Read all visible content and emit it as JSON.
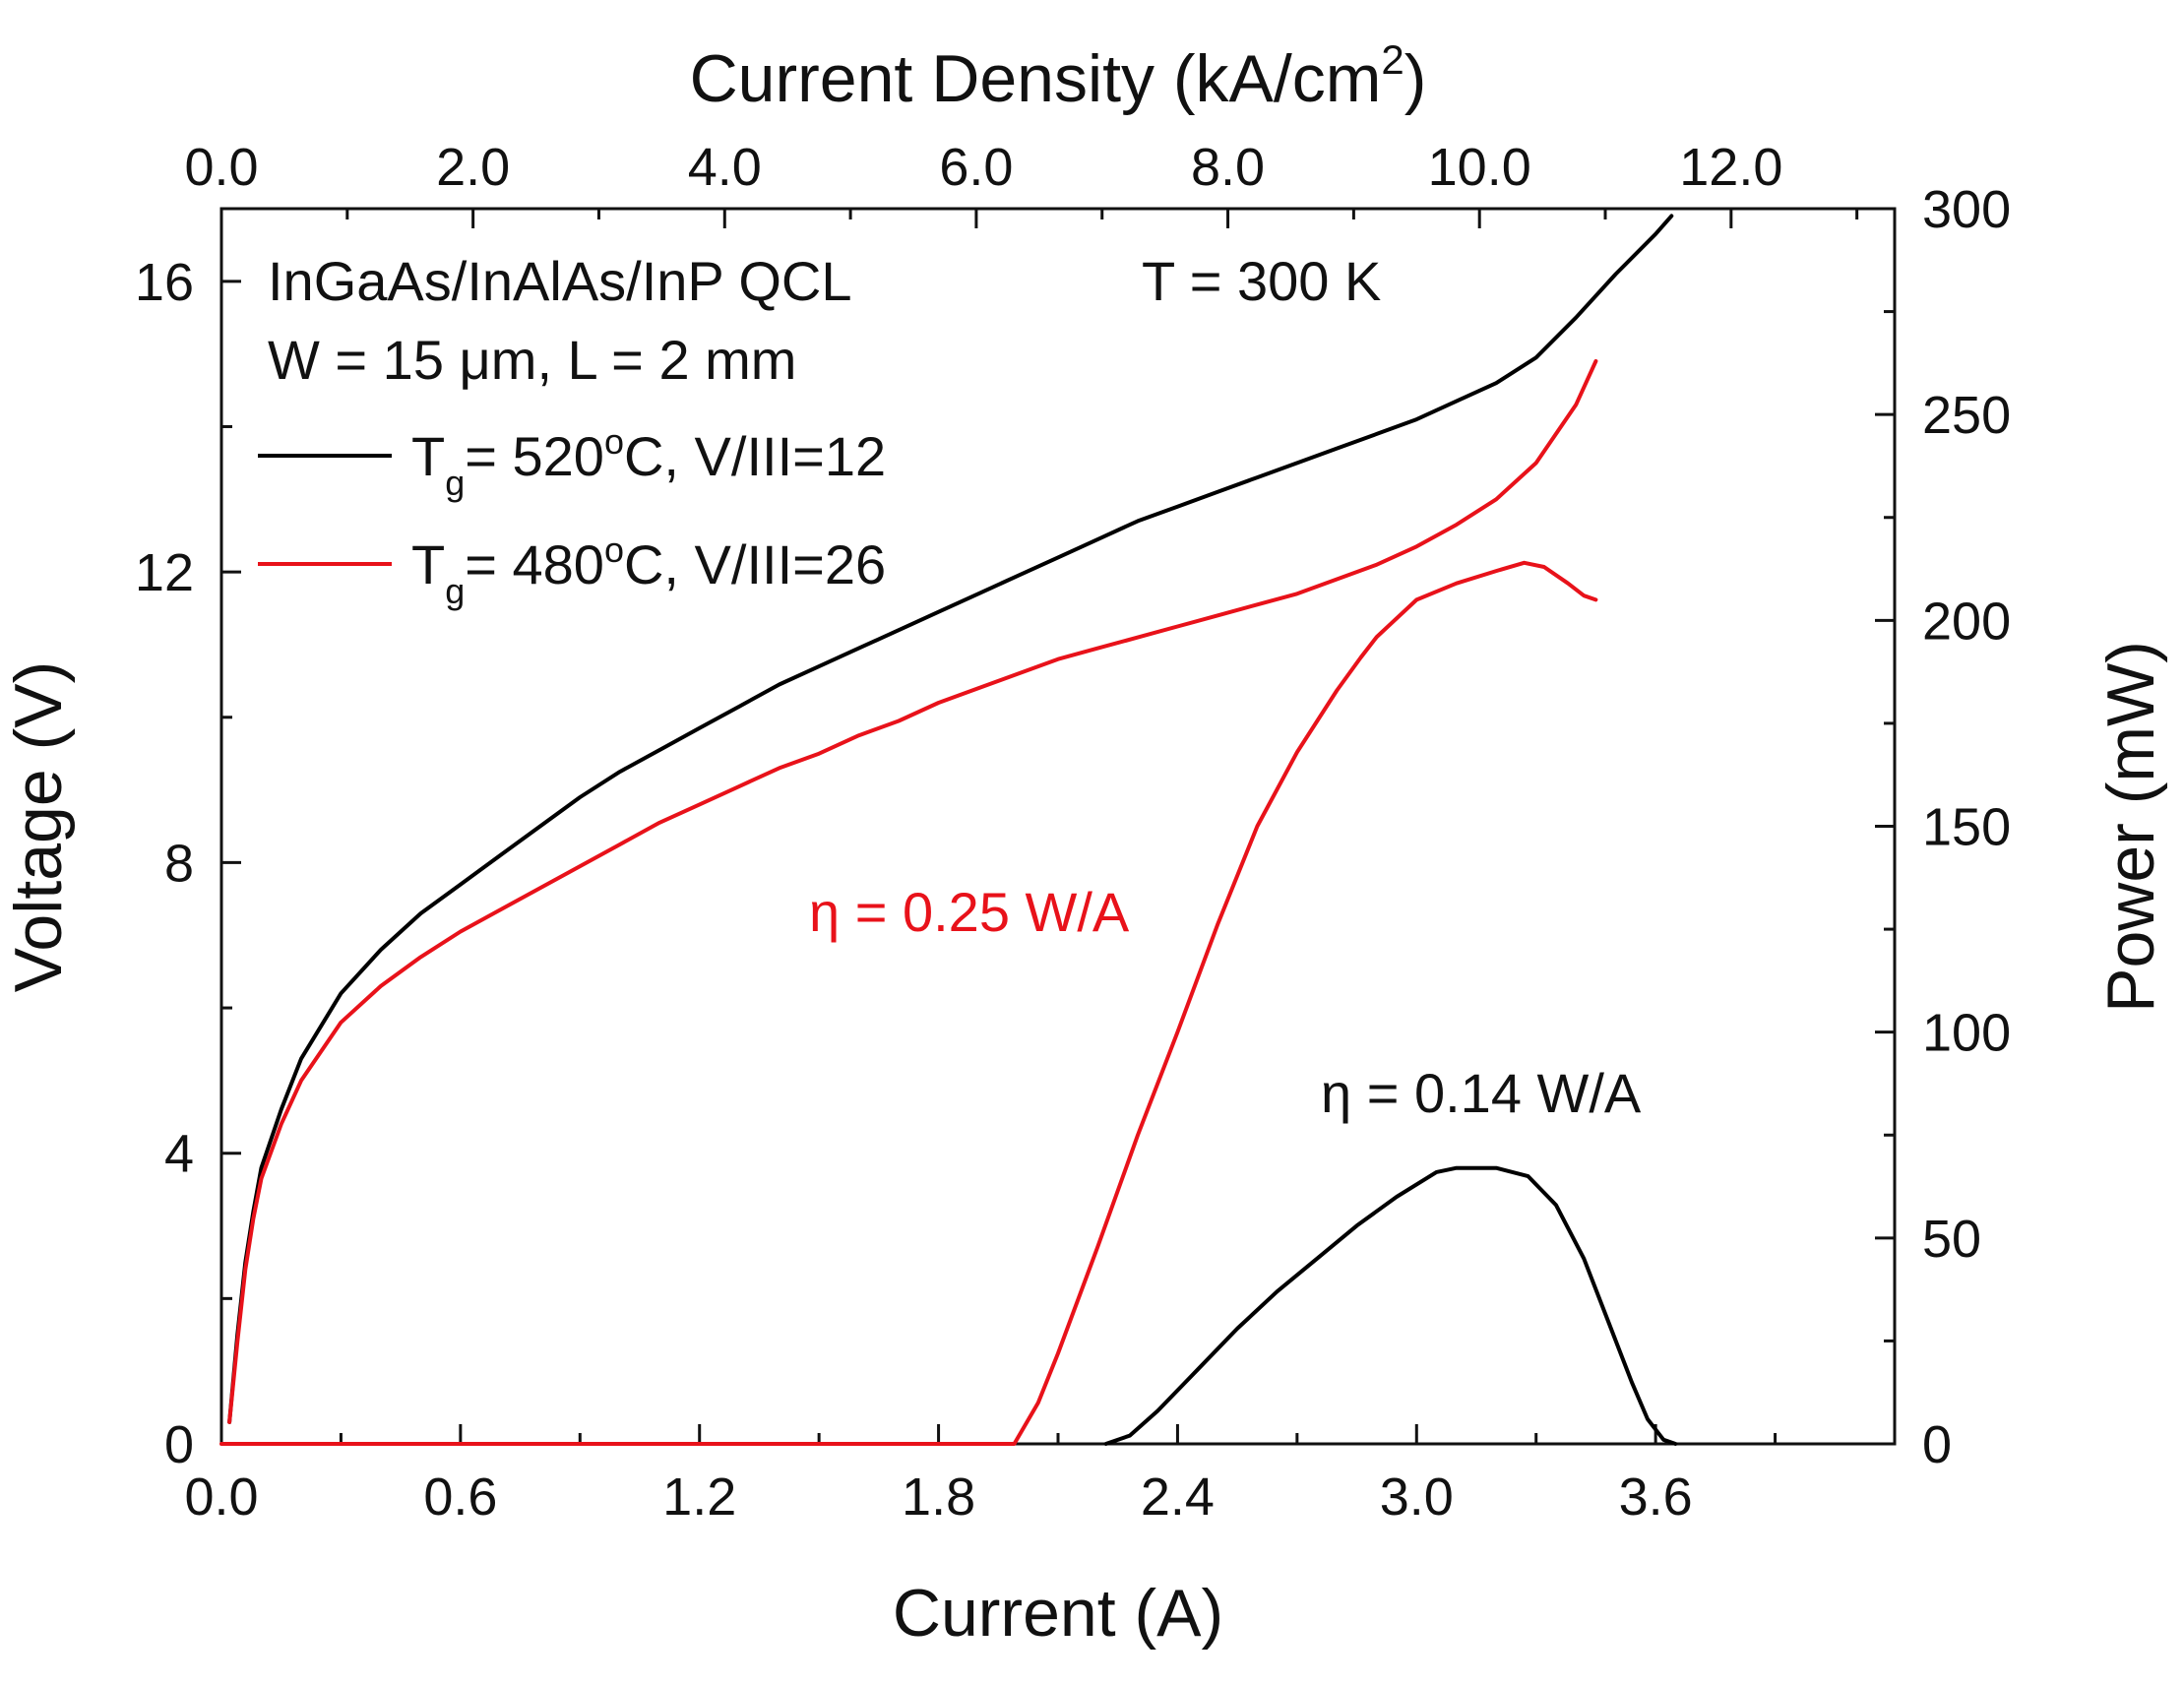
{
  "chart_data": {
    "type": "line",
    "annotation": {
      "device_line": "InGaAs/InAlAs/InP QCL",
      "temperature": "T = 300 K",
      "geometry": "W = 15 μm,  L = 2 mm",
      "eta_red": "η = 0.25 W/A",
      "eta_black": "η = 0.14 W/A"
    },
    "axes": {
      "x_bottom": {
        "label": "Current (A)",
        "range": [
          0,
          4.2
        ],
        "major_ticks": [
          0,
          0.6,
          1.2,
          1.8,
          2.4,
          3.0,
          3.6
        ],
        "tick_labels": [
          "0.0",
          "0.6",
          "1.2",
          "1.8",
          "2.4",
          "3.0",
          "3.6"
        ]
      },
      "x_top": {
        "label_main": "Current Density (kA/cm",
        "label_sup": "2",
        "label_end": ")",
        "range": [
          0,
          13.3
        ],
        "major_ticks": [
          0,
          2,
          4,
          6,
          8,
          10,
          12
        ],
        "tick_labels": [
          "0.0",
          "2.0",
          "4.0",
          "6.0",
          "8.0",
          "10.0",
          "12.0"
        ]
      },
      "y_left": {
        "label": "Voltage (V)",
        "range": [
          0,
          17
        ],
        "major_ticks": [
          0,
          4,
          8,
          12,
          16
        ],
        "tick_labels": [
          "0",
          "4",
          "8",
          "12",
          "16"
        ]
      },
      "y_right": {
        "label": "Power (mW)",
        "range": [
          0,
          300
        ],
        "major_ticks": [
          0,
          50,
          100,
          150,
          200,
          250,
          300
        ],
        "tick_labels": [
          "0",
          "50",
          "100",
          "150",
          "200",
          "250",
          "300"
        ]
      }
    },
    "legend": {
      "placement": "top-left",
      "entries": [
        {
          "prefix": "T",
          "sub": "g",
          "mid": "= 520",
          "sup": "o",
          "suffix": "C, V/III=12",
          "color": "#000000"
        },
        {
          "prefix": "T",
          "sub": "g",
          "mid": "= 480",
          "sup": "o",
          "suffix": "C, V/III=26",
          "color": "#e8121a"
        }
      ]
    },
    "series": [
      {
        "name": "Tg=520C voltage",
        "axis": "left",
        "color": "#000000",
        "points": [
          [
            0.02,
            0.3
          ],
          [
            0.04,
            1.5
          ],
          [
            0.06,
            2.5
          ],
          [
            0.08,
            3.2
          ],
          [
            0.1,
            3.8
          ],
          [
            0.15,
            4.6
          ],
          [
            0.2,
            5.3
          ],
          [
            0.3,
            6.2
          ],
          [
            0.4,
            6.8
          ],
          [
            0.5,
            7.3
          ],
          [
            0.6,
            7.7
          ],
          [
            0.7,
            8.1
          ],
          [
            0.8,
            8.5
          ],
          [
            0.9,
            8.9
          ],
          [
            1.0,
            9.25
          ],
          [
            1.1,
            9.55
          ],
          [
            1.2,
            9.85
          ],
          [
            1.3,
            10.15
          ],
          [
            1.4,
            10.45
          ],
          [
            1.5,
            10.7
          ],
          [
            1.6,
            10.95
          ],
          [
            1.7,
            11.2
          ],
          [
            1.8,
            11.45
          ],
          [
            1.9,
            11.7
          ],
          [
            2.0,
            11.95
          ],
          [
            2.1,
            12.2
          ],
          [
            2.2,
            12.45
          ],
          [
            2.3,
            12.7
          ],
          [
            2.4,
            12.9
          ],
          [
            2.5,
            13.1
          ],
          [
            2.6,
            13.3
          ],
          [
            2.7,
            13.5
          ],
          [
            2.8,
            13.7
          ],
          [
            2.9,
            13.9
          ],
          [
            3.0,
            14.1
          ],
          [
            3.1,
            14.35
          ],
          [
            3.2,
            14.6
          ],
          [
            3.3,
            14.95
          ],
          [
            3.4,
            15.5
          ],
          [
            3.5,
            16.1
          ],
          [
            3.6,
            16.65
          ],
          [
            3.64,
            16.9
          ]
        ]
      },
      {
        "name": "Tg=480C voltage",
        "axis": "left",
        "color": "#e8121a",
        "points": [
          [
            0.02,
            0.3
          ],
          [
            0.04,
            1.4
          ],
          [
            0.06,
            2.4
          ],
          [
            0.08,
            3.1
          ],
          [
            0.1,
            3.65
          ],
          [
            0.15,
            4.4
          ],
          [
            0.2,
            5.0
          ],
          [
            0.3,
            5.8
          ],
          [
            0.4,
            6.3
          ],
          [
            0.5,
            6.7
          ],
          [
            0.6,
            7.05
          ],
          [
            0.7,
            7.35
          ],
          [
            0.8,
            7.65
          ],
          [
            0.9,
            7.95
          ],
          [
            1.0,
            8.25
          ],
          [
            1.1,
            8.55
          ],
          [
            1.2,
            8.8
          ],
          [
            1.3,
            9.05
          ],
          [
            1.4,
            9.3
          ],
          [
            1.5,
            9.5
          ],
          [
            1.6,
            9.75
          ],
          [
            1.7,
            9.95
          ],
          [
            1.8,
            10.2
          ],
          [
            1.9,
            10.4
          ],
          [
            2.0,
            10.6
          ],
          [
            2.1,
            10.8
          ],
          [
            2.2,
            10.95
          ],
          [
            2.3,
            11.1
          ],
          [
            2.4,
            11.25
          ],
          [
            2.5,
            11.4
          ],
          [
            2.6,
            11.55
          ],
          [
            2.7,
            11.7
          ],
          [
            2.8,
            11.9
          ],
          [
            2.9,
            12.1
          ],
          [
            3.0,
            12.35
          ],
          [
            3.1,
            12.65
          ],
          [
            3.2,
            13.0
          ],
          [
            3.3,
            13.5
          ],
          [
            3.4,
            14.3
          ],
          [
            3.45,
            14.9
          ]
        ]
      },
      {
        "name": "Tg=480C power",
        "axis": "right",
        "color": "#e8121a",
        "points": [
          [
            0.0,
            0
          ],
          [
            1.8,
            0
          ],
          [
            1.99,
            0
          ],
          [
            2.05,
            10
          ],
          [
            2.1,
            22
          ],
          [
            2.2,
            48
          ],
          [
            2.3,
            75
          ],
          [
            2.4,
            100
          ],
          [
            2.5,
            126
          ],
          [
            2.6,
            150
          ],
          [
            2.7,
            168
          ],
          [
            2.8,
            183
          ],
          [
            2.86,
            191
          ],
          [
            2.9,
            196
          ],
          [
            3.0,
            205
          ],
          [
            3.1,
            209
          ],
          [
            3.2,
            212
          ],
          [
            3.27,
            214
          ],
          [
            3.32,
            213
          ],
          [
            3.38,
            209
          ],
          [
            3.42,
            206
          ],
          [
            3.45,
            205
          ]
        ]
      },
      {
        "name": "Tg=520C power",
        "axis": "right",
        "color": "#000000",
        "points": [
          [
            2.22,
            0
          ],
          [
            2.28,
            2
          ],
          [
            2.35,
            8
          ],
          [
            2.45,
            18
          ],
          [
            2.55,
            28
          ],
          [
            2.65,
            37
          ],
          [
            2.75,
            45
          ],
          [
            2.85,
            53
          ],
          [
            2.95,
            60
          ],
          [
            3.05,
            66
          ],
          [
            3.1,
            67
          ],
          [
            3.2,
            67
          ],
          [
            3.28,
            65
          ],
          [
            3.35,
            58
          ],
          [
            3.42,
            45
          ],
          [
            3.48,
            30
          ],
          [
            3.54,
            15
          ],
          [
            3.58,
            6
          ],
          [
            3.62,
            1
          ],
          [
            3.65,
            0
          ]
        ]
      }
    ]
  }
}
